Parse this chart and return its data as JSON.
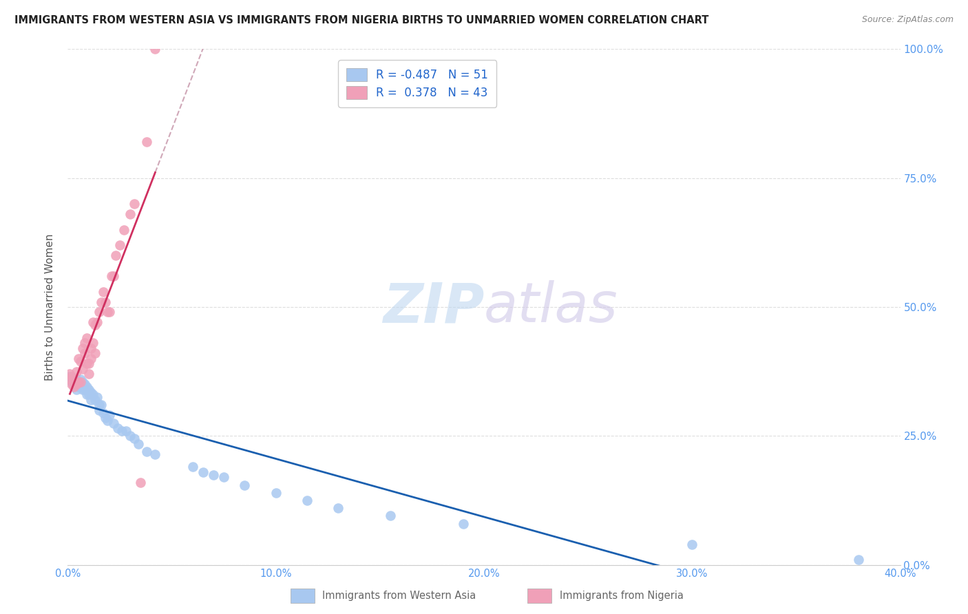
{
  "title": "IMMIGRANTS FROM WESTERN ASIA VS IMMIGRANTS FROM NIGERIA BIRTHS TO UNMARRIED WOMEN CORRELATION CHART",
  "source": "Source: ZipAtlas.com",
  "xlabel_blue": "Immigrants from Western Asia",
  "xlabel_pink": "Immigrants from Nigeria",
  "ylabel": "Births to Unmarried Women",
  "r_blue": -0.487,
  "n_blue": 51,
  "r_pink": 0.378,
  "n_pink": 43,
  "blue_color": "#A8C8F0",
  "pink_color": "#F0A0B8",
  "blue_line_color": "#1A5FAF",
  "pink_line_color": "#D03060",
  "dashed_line_color": "#D0A8B8",
  "watermark_zip": "ZIP",
  "watermark_atlas": "atlas",
  "x_blue": [
    0.001,
    0.002,
    0.003,
    0.003,
    0.004,
    0.004,
    0.005,
    0.005,
    0.006,
    0.006,
    0.007,
    0.007,
    0.008,
    0.008,
    0.009,
    0.009,
    0.01,
    0.01,
    0.011,
    0.011,
    0.012,
    0.013,
    0.014,
    0.015,
    0.015,
    0.016,
    0.017,
    0.018,
    0.019,
    0.02,
    0.022,
    0.024,
    0.026,
    0.028,
    0.03,
    0.032,
    0.034,
    0.038,
    0.042,
    0.06,
    0.065,
    0.07,
    0.075,
    0.085,
    0.1,
    0.115,
    0.13,
    0.155,
    0.19,
    0.3,
    0.38
  ],
  "y_blue": [
    0.365,
    0.355,
    0.36,
    0.35,
    0.36,
    0.34,
    0.355,
    0.345,
    0.36,
    0.345,
    0.355,
    0.34,
    0.35,
    0.34,
    0.345,
    0.33,
    0.34,
    0.33,
    0.335,
    0.32,
    0.33,
    0.32,
    0.325,
    0.31,
    0.3,
    0.31,
    0.295,
    0.285,
    0.28,
    0.29,
    0.275,
    0.265,
    0.26,
    0.26,
    0.25,
    0.245,
    0.235,
    0.22,
    0.215,
    0.19,
    0.18,
    0.175,
    0.17,
    0.155,
    0.14,
    0.125,
    0.11,
    0.095,
    0.08,
    0.04,
    0.01
  ],
  "x_pink": [
    0.001,
    0.001,
    0.002,
    0.002,
    0.003,
    0.003,
    0.004,
    0.004,
    0.005,
    0.005,
    0.006,
    0.006,
    0.007,
    0.007,
    0.008,
    0.008,
    0.009,
    0.009,
    0.01,
    0.01,
    0.011,
    0.011,
    0.012,
    0.012,
    0.013,
    0.013,
    0.014,
    0.015,
    0.016,
    0.017,
    0.018,
    0.019,
    0.02,
    0.021,
    0.022,
    0.023,
    0.025,
    0.027,
    0.03,
    0.032,
    0.035,
    0.038,
    0.042
  ],
  "y_pink": [
    0.37,
    0.36,
    0.365,
    0.35,
    0.36,
    0.345,
    0.375,
    0.35,
    0.4,
    0.355,
    0.395,
    0.355,
    0.42,
    0.38,
    0.43,
    0.41,
    0.44,
    0.39,
    0.39,
    0.37,
    0.42,
    0.4,
    0.47,
    0.43,
    0.465,
    0.41,
    0.47,
    0.49,
    0.51,
    0.53,
    0.51,
    0.49,
    0.49,
    0.56,
    0.56,
    0.6,
    0.62,
    0.65,
    0.68,
    0.7,
    0.16,
    0.82,
    1.0
  ],
  "ylim": [
    0.0,
    1.0
  ],
  "xlim": [
    0.0,
    0.4
  ],
  "yticks_right": [
    0.0,
    0.25,
    0.5,
    0.75,
    1.0
  ],
  "ytick_labels_right": [
    "0.0%",
    "25.0%",
    "50.0%",
    "75.0%",
    "100.0%"
  ],
  "xticks": [
    0.0,
    0.1,
    0.2,
    0.3,
    0.4
  ],
  "xtick_labels": [
    "0.0%",
    "10.0%",
    "20.0%",
    "30.0%",
    "40.0%"
  ],
  "background_color": "#FFFFFF",
  "grid_color": "#DDDDDD"
}
